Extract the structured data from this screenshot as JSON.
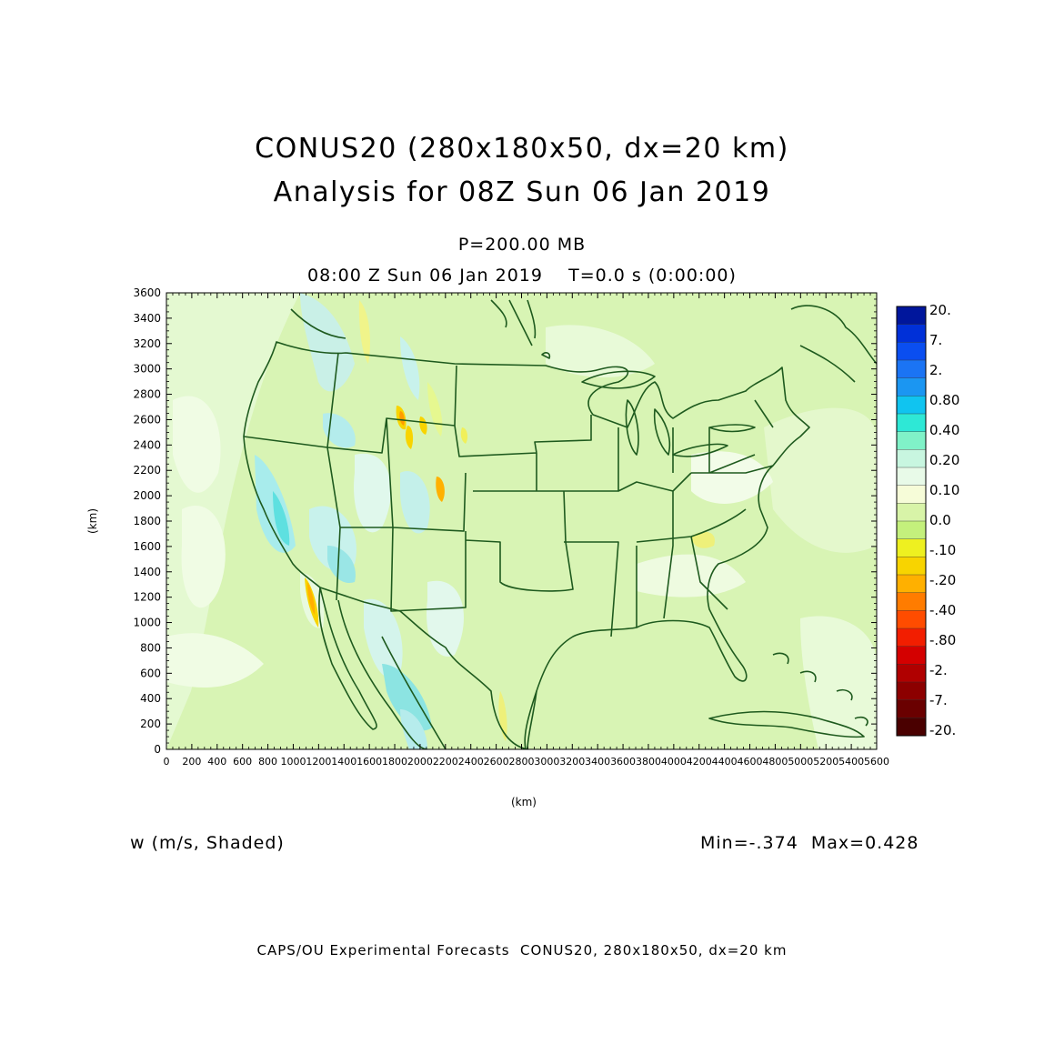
{
  "title": "CONUS20 (280x180x50, dx=20 km)",
  "subtitle": "Analysis for 08Z Sun 06 Jan 2019",
  "level_label": "P=200.00 MB",
  "time_label": "08:00 Z Sun 06 Jan 2019    T=0.0 s (0:00:00)",
  "variable_label": "w (m/s, Shaded)",
  "minmax_label": "Min=-.374  Max=0.428",
  "footer": "CAPS/OU Experimental Forecasts  CONUS20, 280x180x50, dx=20 km",
  "x_axis": {
    "label": "(km)",
    "range": [
      0,
      5600
    ],
    "ticks": [
      "0",
      "200",
      "400",
      "600",
      "800",
      "1000",
      "1200",
      "1400",
      "1600",
      "1800",
      "2000",
      "2200",
      "2400",
      "2600",
      "2800",
      "3000",
      "3200",
      "3400",
      "3600",
      "3800",
      "4000",
      "4200",
      "4400",
      "4600",
      "4800",
      "5000",
      "5200",
      "5400",
      "5600"
    ]
  },
  "y_axis": {
    "label": "(km)",
    "range": [
      0,
      3600
    ],
    "ticks": [
      "0",
      "200",
      "400",
      "600",
      "800",
      "1000",
      "1200",
      "1400",
      "1600",
      "1800",
      "2000",
      "2200",
      "2400",
      "2600",
      "2800",
      "3000",
      "3200",
      "3400",
      "3600"
    ]
  },
  "colorbar": {
    "labels": [
      "20.",
      "7.",
      "2.",
      "0.80",
      "0.40",
      "0.20",
      "0.10",
      "0.0",
      "-.10",
      "-.20",
      "-.40",
      "-.80",
      "-2.",
      "-7.",
      "-20."
    ],
    "colors": [
      "#00169c",
      "#0030d8",
      "#0a4ef0",
      "#1b74f4",
      "#1b96f2",
      "#10c4f0",
      "#2ee8d6",
      "#80f2c8",
      "#c8f6e0",
      "#e8fae8",
      "#f6fcd8",
      "#d8f4a8",
      "#c4f07c",
      "#eef020",
      "#f8d400",
      "#ffb000",
      "#ff7c00",
      "#ff4c00",
      "#f21e00",
      "#d40000",
      "#b00000",
      "#8c0000",
      "#6a0000",
      "#4a0000"
    ]
  }
}
